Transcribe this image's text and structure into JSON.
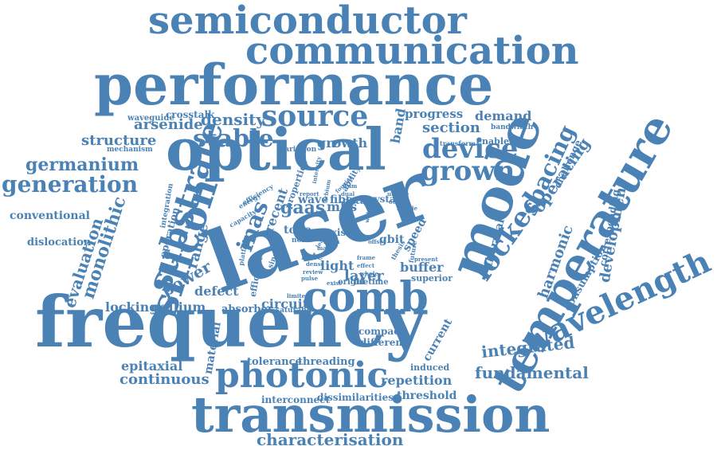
{
  "colors": {
    "word": "#4a82b5",
    "background": "#ffffff"
  },
  "words": [
    {
      "text": "semiconductor",
      "weight": 3.3
    },
    {
      "text": "communication",
      "weight": 3.3
    },
    {
      "text": "performance",
      "weight": 4.8
    },
    {
      "text": "optical",
      "weight": 5.0
    },
    {
      "text": "laser",
      "weight": 7.0
    },
    {
      "text": "mode",
      "weight": 4.8
    },
    {
      "text": "frequency",
      "weight": 6.0
    },
    {
      "text": "temperature",
      "weight": 3.9
    },
    {
      "text": "wavelength",
      "weight": 2.8
    },
    {
      "text": "transmission",
      "weight": 4.5
    },
    {
      "text": "photonic",
      "weight": 3.0
    },
    {
      "text": "comb",
      "weight": 3.6
    },
    {
      "text": "silicon",
      "weight": 3.4
    },
    {
      "text": "substrate",
      "weight": 3.0
    },
    {
      "text": "source",
      "weight": 2.5
    },
    {
      "text": "device",
      "weight": 2.3
    },
    {
      "text": "grown",
      "weight": 2.3
    },
    {
      "text": "locked",
      "weight": 2.4
    },
    {
      "text": "stable",
      "weight": 2.0
    },
    {
      "text": "spacing",
      "weight": 1.9
    },
    {
      "text": "inas",
      "weight": 2.0
    },
    {
      "text": "generation",
      "weight": 2.0
    },
    {
      "text": "germanium",
      "weight": 1.5
    },
    {
      "text": "monolithic",
      "weight": 1.6
    },
    {
      "text": "evaluation",
      "weight": 1.4
    },
    {
      "text": "characterisation",
      "weight": 1.5
    },
    {
      "text": "continuous",
      "weight": 1.3
    },
    {
      "text": "fundamental",
      "weight": 1.3
    },
    {
      "text": "development",
      "weight": 1.2
    },
    {
      "text": "integrated",
      "weight": 1.3
    },
    {
      "text": "harmonic",
      "weight": 1.2
    },
    {
      "text": "operating",
      "weight": 1.3
    },
    {
      "text": "power",
      "weight": 1.4
    },
    {
      "text": "range",
      "weight": 1.3
    },
    {
      "text": "density",
      "weight": 1.3
    },
    {
      "text": "arsenide",
      "weight": 1.2
    },
    {
      "text": "structure",
      "weight": 1.2
    },
    {
      "text": "section",
      "weight": 1.3
    },
    {
      "text": "growth",
      "weight": 1.2
    },
    {
      "text": "demand",
      "weight": 1.1
    },
    {
      "text": "progress",
      "weight": 1.0
    },
    {
      "text": "band",
      "weight": 1.1
    },
    {
      "text": "conventional",
      "weight": 1.0
    },
    {
      "text": "dislocation",
      "weight": 0.9
    },
    {
      "text": "epitaxial",
      "weight": 1.1
    },
    {
      "text": "gallium",
      "weight": 1.1
    },
    {
      "text": "locking",
      "weight": 1.1
    },
    {
      "text": "defect",
      "weight": 1.1
    },
    {
      "text": "material",
      "weight": 1.0
    },
    {
      "text": "circuit",
      "weight": 1.1
    },
    {
      "text": "absorber",
      "weight": 1.0
    },
    {
      "text": "tolerance",
      "weight": 0.9
    },
    {
      "text": "threading",
      "weight": 0.9
    },
    {
      "text": "interconnect",
      "weight": 0.8
    },
    {
      "text": "dissimilarities",
      "weight": 0.8
    },
    {
      "text": "repetition",
      "weight": 1.1
    },
    {
      "text": "threshold",
      "weight": 0.9
    },
    {
      "text": "current",
      "weight": 0.9
    },
    {
      "text": "induced",
      "weight": 0.8
    },
    {
      "text": "compact",
      "weight": 0.8
    },
    {
      "text": "different",
      "weight": 0.8
    },
    {
      "text": "buffer",
      "weight": 1.1
    },
    {
      "text": "layer",
      "weight": 1.1
    },
    {
      "text": "light",
      "weight": 1.1
    },
    {
      "text": "superior",
      "weight": 0.8
    },
    {
      "text": "gaas",
      "weight": 1.5
    },
    {
      "text": "mlls",
      "weight": 1.2
    },
    {
      "text": "wave",
      "weight": 1.0
    },
    {
      "text": "fiber",
      "weight": 1.0
    },
    {
      "text": "data",
      "weight": 0.9
    },
    {
      "text": "crystal",
      "weight": 0.9
    },
    {
      "text": "gbit",
      "weight": 0.9
    },
    {
      "text": "tone",
      "weight": 0.9
    },
    {
      "text": "rate",
      "weight": 0.8
    },
    {
      "text": "axis",
      "weight": 0.8
    },
    {
      "text": "recent",
      "weight": 1.1
    },
    {
      "text": "waveguide",
      "weight": 0.7
    },
    {
      "text": "crosstalk",
      "weight": 0.8
    },
    {
      "text": "mechanism",
      "weight": 0.6
    },
    {
      "text": "variation",
      "weight": 0.6
    },
    {
      "text": "transform",
      "weight": 0.6
    },
    {
      "text": "enabled",
      "weight": 0.7
    },
    {
      "text": "bandwidth",
      "weight": 0.6
    },
    {
      "text": "challenge",
      "weight": 0.7
    },
    {
      "text": "corresponding",
      "weight": 0.7
    },
    {
      "text": "consumption",
      "weight": 0.8
    },
    {
      "text": "thermal",
      "weight": 0.9
    },
    {
      "text": "origin",
      "weight": 0.6
    },
    {
      "text": "lifetime",
      "weight": 0.6
    },
    {
      "text": "saturable",
      "weight": 0.6
    },
    {
      "text": "efficient",
      "weight": 0.7
    },
    {
      "text": "platform",
      "weight": 0.6
    },
    {
      "text": "integration",
      "weight": 0.6
    },
    {
      "text": "operation",
      "weight": 0.8
    },
    {
      "text": "capacity",
      "weight": 0.6
    },
    {
      "text": "energy",
      "weight": 0.6
    },
    {
      "text": "efficiency",
      "weight": 0.6
    },
    {
      "text": "properties",
      "weight": 0.7
    },
    {
      "text": "intensity",
      "weight": 0.5
    },
    {
      "text": "ability",
      "weight": 0.6
    },
    {
      "text": "speed",
      "weight": 0.8
    },
    {
      "text": "noise",
      "weight": 0.6
    },
    {
      "text": "single",
      "weight": 0.6
    },
    {
      "text": "limited",
      "weight": 0.5
    },
    {
      "text": "future",
      "weight": 0.5
    },
    {
      "text": "present",
      "weight": 0.5
    },
    {
      "text": "thesis",
      "weight": 0.5
    },
    {
      "text": "dual",
      "weight": 0.5
    },
    {
      "text": "fourier",
      "weight": 0.5
    },
    {
      "text": "report",
      "weight": 0.5
    },
    {
      "text": "output",
      "weight": 0.5
    },
    {
      "text": "unique",
      "weight": 0.5
    },
    {
      "text": "simple",
      "weight": 0.5
    },
    {
      "text": "review",
      "weight": 0.5
    },
    {
      "text": "effect",
      "weight": 0.5
    },
    {
      "text": "pulse",
      "weight": 0.5
    },
    {
      "text": "whole",
      "weight": 0.5
    },
    {
      "text": "dense",
      "weight": 0.5
    },
    {
      "text": "widely",
      "weight": 0.5
    },
    {
      "text": "room",
      "weight": 0.5
    },
    {
      "text": "exist",
      "weight": 0.5
    },
    {
      "text": "lead",
      "weight": 0.5
    },
    {
      "text": "mark",
      "weight": 0.5
    },
    {
      "text": "high",
      "weight": 0.5
    },
    {
      "text": "erbium",
      "weight": 0.5
    },
    {
      "text": "offset",
      "weight": 0.5
    },
    {
      "text": "frame",
      "weight": 0.5
    },
    {
      "text": "wdm",
      "weight": 0.5
    }
  ]
}
